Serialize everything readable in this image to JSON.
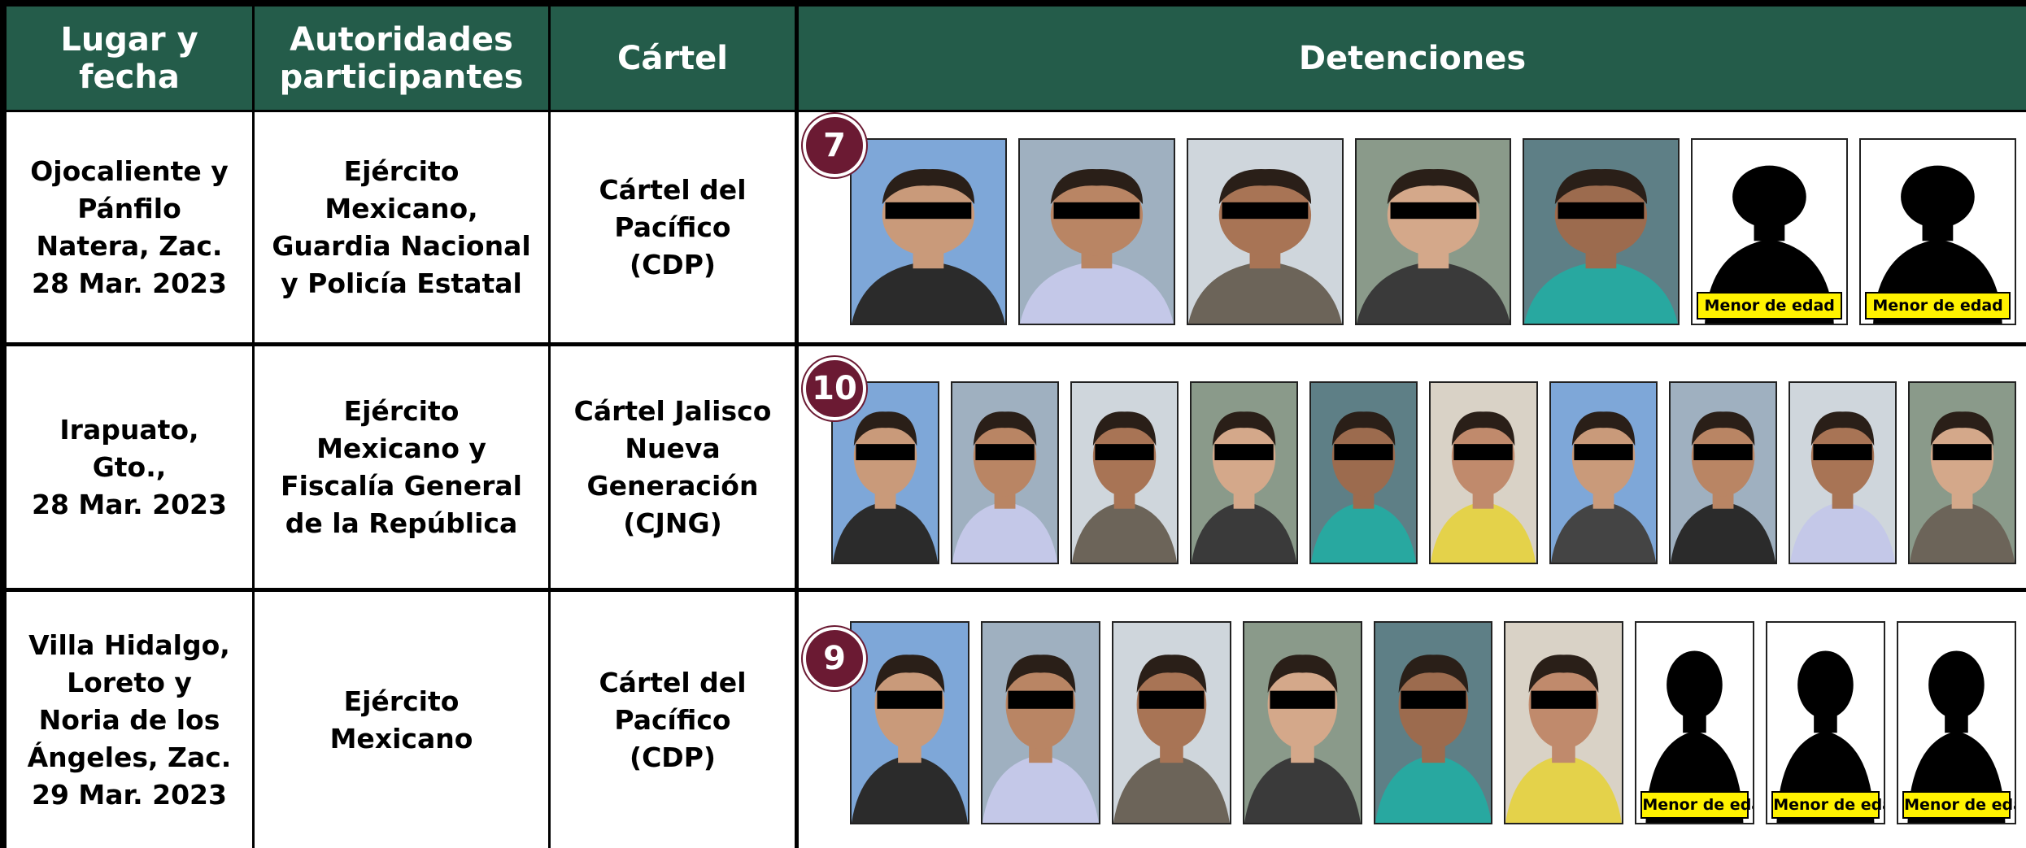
{
  "table": {
    "headers": [
      "Lugar y\nfecha",
      "Autoridades\nparticipantes",
      "Cártel",
      "Detenciones"
    ],
    "rows": [
      {
        "place": "Ojocaliente y\nPánfilo\nNatera, Zac.\n28 Mar. 2023",
        "authorities": "Ejército\nMexicano,\nGuardia Nacional\ny Policía Estatal",
        "cartel": "Cártel del\nPacífico\n(CDP)",
        "count": "7",
        "minor_labels": [
          "Menor de edad",
          "Menor de edad"
        ]
      },
      {
        "place": "Irapuato,\nGto.,\n28 Mar. 2023",
        "authorities": "Ejército\nMexicano y\nFiscalía General\nde la República",
        "cartel": "Cártel Jalisco\nNueva\nGeneración\n(CJNG)",
        "count": "10",
        "minor_labels": []
      },
      {
        "place": "Villa Hidalgo,\nLoreto y\nNoria de los\nÁngeles, Zac.\n29 Mar. 2023",
        "authorities": "Ejército\nMexicano",
        "cartel": "Cártel del\nPacífico\n(CDP)",
        "count": "9",
        "minor_labels": [
          "Menor de edad",
          "Menor de edad",
          "Menor de edad"
        ]
      }
    ]
  }
}
